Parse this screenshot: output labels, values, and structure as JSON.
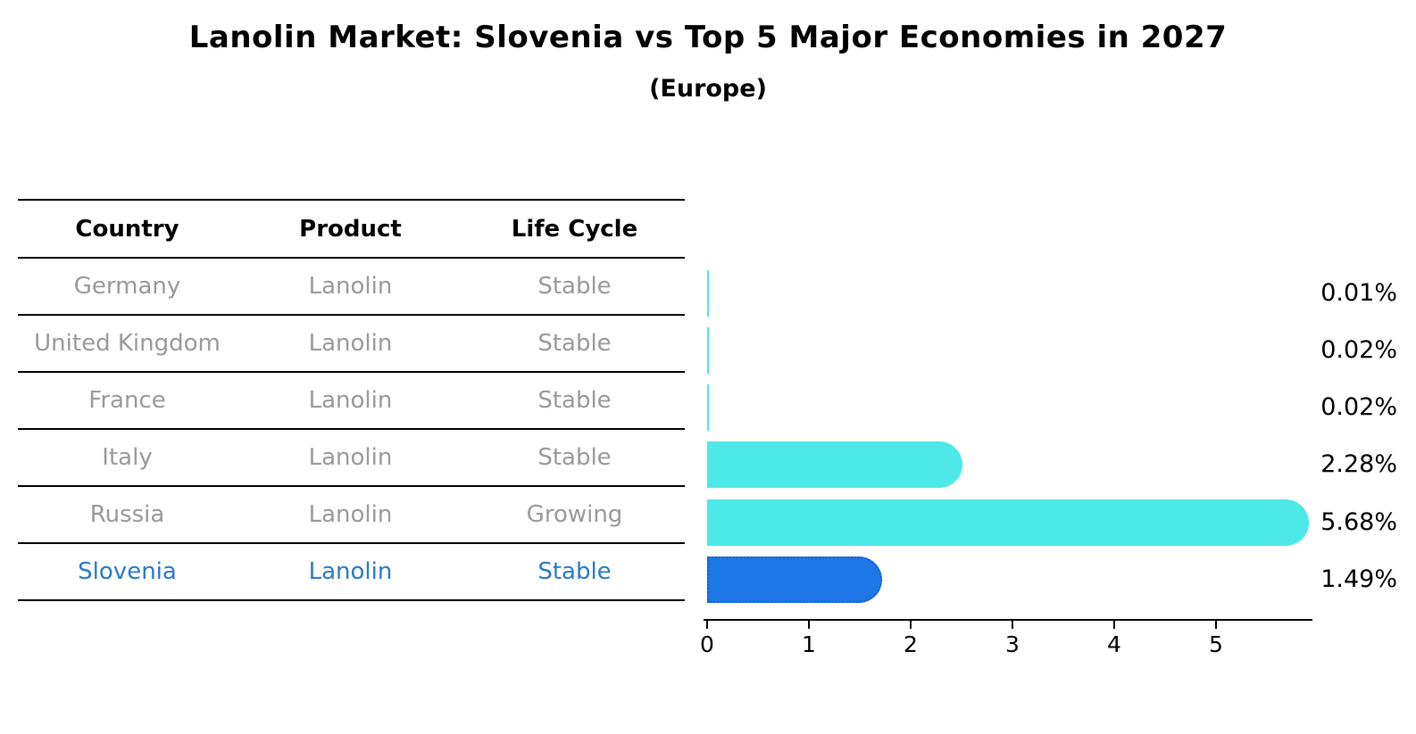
{
  "title": "Lanolin Market: Slovenia vs Top 5 Major Economies in 2027",
  "subtitle": "(Europe)",
  "table": {
    "headers": [
      "Country",
      "Product",
      "Life Cycle"
    ],
    "rows": [
      {
        "country": "Germany",
        "product": "Lanolin",
        "life_cycle": "Stable",
        "highlight": false
      },
      {
        "country": "United Kingdom",
        "product": "Lanolin",
        "life_cycle": "Stable",
        "highlight": false
      },
      {
        "country": "France",
        "product": "Lanolin",
        "life_cycle": "Stable",
        "highlight": false
      },
      {
        "country": "Italy",
        "product": "Lanolin",
        "life_cycle": "Stable",
        "highlight": false
      },
      {
        "country": "Russia",
        "product": "Lanolin",
        "life_cycle": "Growing",
        "highlight": false
      },
      {
        "country": "Slovenia",
        "product": "Lanolin",
        "life_cycle": "Stable",
        "highlight": true
      }
    ]
  },
  "chart_data": {
    "type": "bar",
    "orientation": "horizontal",
    "title": "Lanolin Market: Slovenia vs Top 5 Major Economies in 2027",
    "subtitle": "(Europe)",
    "categories": [
      "Germany",
      "United Kingdom",
      "France",
      "Italy",
      "Russia",
      "Slovenia"
    ],
    "values": [
      0.01,
      0.02,
      0.02,
      2.28,
      5.68,
      1.49
    ],
    "value_labels": [
      "0.01%",
      "0.02%",
      "0.02%",
      "2.28%",
      "5.68%",
      "1.49%"
    ],
    "highlight_index": 5,
    "xlim": [
      0,
      6
    ],
    "xticks": [
      "0",
      "1",
      "2",
      "3",
      "4",
      "5"
    ],
    "grid": "off",
    "legend": "none",
    "colors": {
      "default_bar": "#4DE8E8",
      "highlight_bar": "#1E77E6",
      "highlight_border": "#1A5CCC",
      "highlight_text": "#2979C9",
      "row_text": "#999999",
      "axis": "#000000"
    }
  }
}
